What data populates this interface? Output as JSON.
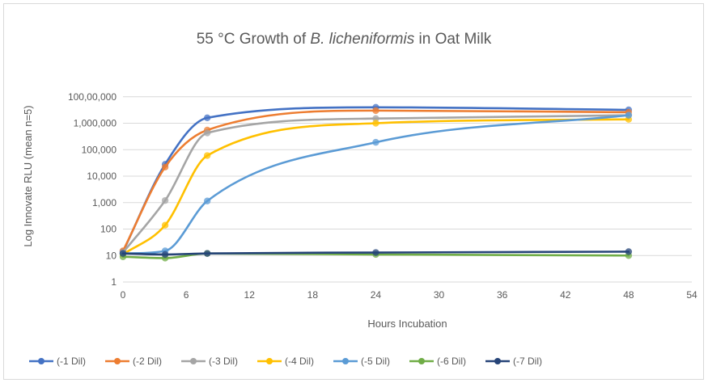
{
  "chart_data": {
    "type": "line",
    "title_parts": [
      {
        "text": "55 °C Growth of ",
        "italic": false
      },
      {
        "text": "B. licheniformis",
        "italic": true
      },
      {
        "text": " in Oat Milk",
        "italic": false
      }
    ],
    "xlabel": "Hours Incubation",
    "ylabel": "Log Innovate RLU (mean n=5)",
    "xlim": [
      0,
      54
    ],
    "xticks": [
      0,
      6,
      12,
      18,
      24,
      30,
      36,
      42,
      48,
      54
    ],
    "ylim": [
      1,
      100000000
    ],
    "yscale": "log",
    "yticks": [
      1,
      10,
      100,
      1000,
      10000,
      100000,
      1000000,
      10000000
    ],
    "ytick_labels": [
      "1",
      "10",
      "100",
      "1,000",
      "10,000",
      "100,000",
      "1,000,000",
      "100,00,000"
    ],
    "grid": "horizontal",
    "legend_position": "bottom",
    "x": [
      0,
      4,
      8,
      24,
      48
    ],
    "series": [
      {
        "name": "(-1 Dil)",
        "color": "#4472C4",
        "values": [
          14,
          28000,
          1600000,
          4000000,
          3200000
        ]
      },
      {
        "name": "(-2 Dil)",
        "color": "#ED7D31",
        "values": [
          15,
          22000,
          550000,
          3000000,
          2600000
        ]
      },
      {
        "name": "(-3 Dil)",
        "color": "#A5A5A5",
        "values": [
          13,
          1200,
          430000,
          1500000,
          2000000
        ]
      },
      {
        "name": "(-4 Dil)",
        "color": "#FFC000",
        "values": [
          11,
          140,
          60000,
          1000000,
          1400000
        ]
      },
      {
        "name": "(-5 Dil)",
        "color": "#5B9BD5",
        "values": [
          12,
          15,
          1150,
          190000,
          2000000
        ]
      },
      {
        "name": "(-6 Dil)",
        "color": "#70AD47",
        "values": [
          9,
          8,
          12,
          11,
          10
        ]
      },
      {
        "name": "(-7 Dil)",
        "color": "#264478",
        "values": [
          12,
          11,
          12,
          13,
          14
        ]
      }
    ]
  }
}
